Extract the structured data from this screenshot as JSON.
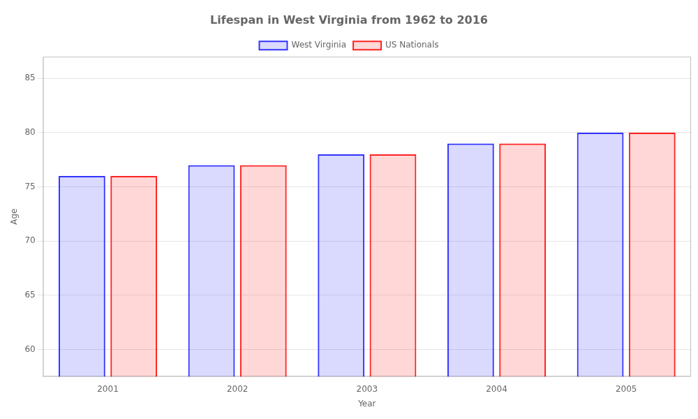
{
  "chart_data": {
    "type": "bar",
    "title": "Lifespan in West Virginia from 1962 to 2016",
    "x_label": "Year",
    "y_label": "Age",
    "categories": [
      "2001",
      "2002",
      "2003",
      "2004",
      "2005"
    ],
    "series": [
      {
        "name": "West Virginia",
        "color": "#3333ff",
        "values": [
          76,
          77,
          78,
          79,
          80
        ]
      },
      {
        "name": "US Nationals",
        "color": "#ff2222",
        "values": [
          76,
          77,
          78,
          79,
          80
        ]
      }
    ],
    "ylim": [
      57.5,
      87
    ],
    "yticks": [
      60,
      65,
      70,
      75,
      80,
      85
    ],
    "grid": true,
    "legend": "top"
  }
}
